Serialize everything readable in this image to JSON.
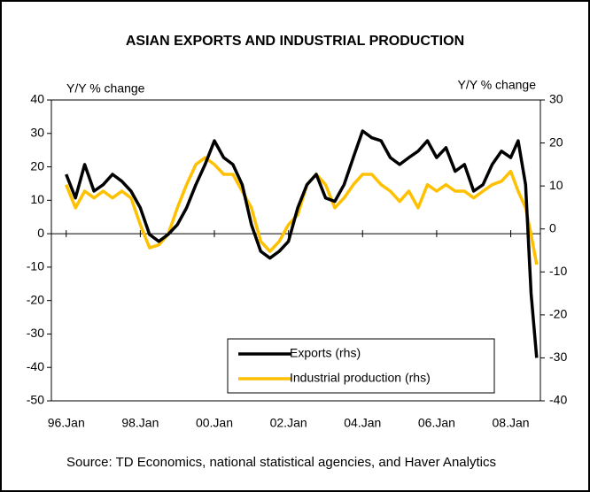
{
  "chart_data": {
    "type": "line",
    "title": "ASIAN EXPORTS AND INDUSTRIAL PRODUCTION",
    "y_label": "Y/Y % change",
    "y2_label": "Y/Y % change",
    "source": "Source: TD Economics, national statistical agencies, and Haver Analytics",
    "x": [
      1996,
      1996.25,
      1996.5,
      1996.75,
      1997,
      1997.25,
      1997.5,
      1997.75,
      1998,
      1998.25,
      1998.5,
      1998.75,
      1999,
      1999.25,
      1999.5,
      1999.75,
      2000,
      2000.25,
      2000.5,
      2000.75,
      2001,
      2001.25,
      2001.5,
      2001.75,
      2002,
      2002.25,
      2002.5,
      2002.75,
      2003,
      2003.25,
      2003.5,
      2003.75,
      2004,
      2004.25,
      2004.5,
      2004.75,
      2005,
      2005.25,
      2005.5,
      2005.75,
      2006,
      2006.25,
      2006.5,
      2006.75,
      2007,
      2007.25,
      2007.5,
      2007.75,
      2008,
      2008.2,
      2008.4,
      2008.55,
      2008.7
    ],
    "xlim": [
      1995.6,
      2008.8
    ],
    "xticks": [
      {
        "value": 1996,
        "label": "96.Jan"
      },
      {
        "value": 1998,
        "label": "98.Jan"
      },
      {
        "value": 2000,
        "label": "00.Jan"
      },
      {
        "value": 2002,
        "label": "02.Jan"
      },
      {
        "value": 2004,
        "label": "04.Jan"
      },
      {
        "value": 2006,
        "label": "06.Jan"
      },
      {
        "value": 2008,
        "label": "08.Jan"
      }
    ],
    "ylim": [
      -50,
      40
    ],
    "yticks": [
      -50,
      -40,
      -30,
      -20,
      -10,
      0,
      10,
      20,
      30,
      40
    ],
    "y2lim": [
      -40,
      30
    ],
    "y2ticks": [
      -40,
      -30,
      -20,
      -10,
      0,
      10,
      20,
      30
    ],
    "legend": "bottom-right",
    "series": [
      {
        "name": "Exports (rhs)",
        "color": "#000000",
        "axis": "y2",
        "values": [
          12.7,
          7.2,
          15,
          8.8,
          10.3,
          12.7,
          11.1,
          8.8,
          4.9,
          -1.3,
          -2.9,
          -1.3,
          1,
          4.9,
          10.3,
          15,
          20.5,
          16.6,
          15,
          10.3,
          1,
          -5.2,
          -6.8,
          -5.2,
          -2.9,
          4.9,
          10.3,
          12.7,
          7.2,
          6.4,
          10.3,
          16.6,
          22.8,
          21.2,
          20.5,
          16.6,
          15,
          16.6,
          18.1,
          20.5,
          16.6,
          18.9,
          13.4,
          15,
          8.8,
          10.3,
          15,
          18.1,
          16.6,
          20.5,
          10.3,
          -15,
          -30
        ]
      },
      {
        "name": "Industrial production (rhs)",
        "color": "#ffc000",
        "axis": "y2",
        "values": [
          10.3,
          4.9,
          8.8,
          7.2,
          8.8,
          7.2,
          8.8,
          7.2,
          1,
          -4.4,
          -3.7,
          -1.3,
          4.9,
          10.3,
          15,
          16.6,
          15,
          12.7,
          12.7,
          8.8,
          4.9,
          -2.9,
          -5.2,
          -2.9,
          1,
          3.3,
          10.3,
          12.7,
          10.3,
          4.9,
          7.2,
          10.3,
          12.7,
          12.7,
          10.3,
          8.8,
          6.4,
          8.8,
          4.9,
          10.3,
          8.8,
          10.3,
          8.8,
          8.8,
          7.2,
          8.8,
          10.3,
          11.1,
          13.4,
          8.8,
          4.9,
          -1.3,
          -8.3
        ]
      }
    ]
  }
}
